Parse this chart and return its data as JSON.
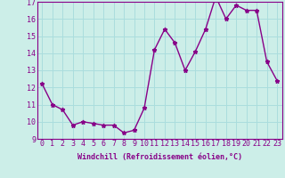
{
  "x": [
    0,
    1,
    2,
    3,
    4,
    5,
    6,
    7,
    8,
    9,
    10,
    11,
    12,
    13,
    14,
    15,
    16,
    17,
    18,
    19,
    20,
    21,
    22,
    23
  ],
  "y": [
    12.2,
    11.0,
    10.7,
    9.8,
    10.0,
    9.9,
    9.8,
    9.8,
    9.35,
    9.5,
    10.8,
    14.2,
    15.4,
    14.6,
    13.0,
    14.1,
    15.4,
    17.3,
    16.0,
    16.8,
    16.5,
    16.5,
    13.5,
    12.4
  ],
  "ylim": [
    9,
    17
  ],
  "yticks": [
    9,
    10,
    11,
    12,
    13,
    14,
    15,
    16,
    17
  ],
  "xlabel": "Windchill (Refroidissement éolien,°C)",
  "line_color": "#880088",
  "marker": "*",
  "marker_size": 3.5,
  "bg_color": "#cceee8",
  "grid_color": "#aadddd",
  "xlabel_color": "#880088",
  "tick_color": "#880088",
  "tick_fontsize": 6,
  "xlabel_fontsize": 6,
  "spine_color": "#880088",
  "linewidth": 1.0
}
